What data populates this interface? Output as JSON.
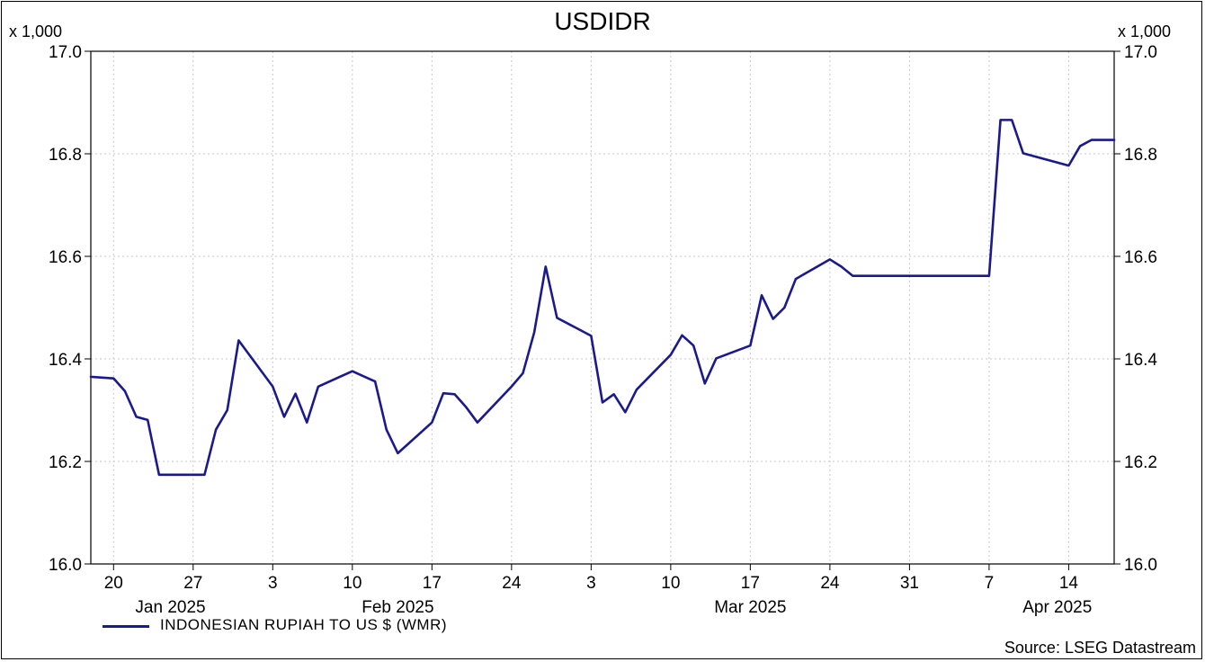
{
  "chart_data": {
    "type": "line",
    "title": "USDIDR",
    "scale_note": "x 1,000",
    "ylim": [
      16.0,
      17.0
    ],
    "y_ticks": [
      "16.0",
      "16.2",
      "16.4",
      "16.6",
      "16.8",
      "17.0"
    ],
    "y_tick_values": [
      16.0,
      16.2,
      16.4,
      16.6,
      16.8,
      17.0
    ],
    "grid": true,
    "x_ticks": [
      {
        "label": "20",
        "date": "2025-01-20"
      },
      {
        "label": "27",
        "date": "2025-01-27"
      },
      {
        "label": "3",
        "date": "2025-02-03"
      },
      {
        "label": "10",
        "date": "2025-02-10"
      },
      {
        "label": "17",
        "date": "2025-02-17"
      },
      {
        "label": "24",
        "date": "2025-02-24"
      },
      {
        "label": "3",
        "date": "2025-03-03"
      },
      {
        "label": "10",
        "date": "2025-03-10"
      },
      {
        "label": "17",
        "date": "2025-03-17"
      },
      {
        "label": "24",
        "date": "2025-03-24"
      },
      {
        "label": "31",
        "date": "2025-03-31"
      },
      {
        "label": "7",
        "date": "2025-04-07"
      },
      {
        "label": "14",
        "date": "2025-04-14"
      }
    ],
    "month_labels": [
      {
        "label": "Jan 2025",
        "date": "2025-01-25"
      },
      {
        "label": "Feb 2025",
        "date": "2025-02-14"
      },
      {
        "label": "Mar 2025",
        "date": "2025-03-17"
      },
      {
        "label": "Apr 2025",
        "date": "2025-04-13"
      }
    ],
    "x_range": [
      "2025-01-18",
      "2025-04-18"
    ],
    "series": [
      {
        "name": "INDONESIAN RUPIAH TO US $ (WMR)",
        "color": "#1a1a8c",
        "points": [
          [
            "2025-01-18",
            16.365
          ],
          [
            "2025-01-20",
            16.362
          ],
          [
            "2025-01-21",
            16.337
          ],
          [
            "2025-01-22",
            16.287
          ],
          [
            "2025-01-23",
            16.281
          ],
          [
            "2025-01-24",
            16.174
          ],
          [
            "2025-01-27",
            16.174
          ],
          [
            "2025-01-28",
            16.174
          ],
          [
            "2025-01-29",
            16.262
          ],
          [
            "2025-01-30",
            16.3
          ],
          [
            "2025-01-31",
            16.436
          ],
          [
            "2025-02-03",
            16.346
          ],
          [
            "2025-02-04",
            16.287
          ],
          [
            "2025-02-05",
            16.332
          ],
          [
            "2025-02-06",
            16.276
          ],
          [
            "2025-02-07",
            16.346
          ],
          [
            "2025-02-10",
            16.376
          ],
          [
            "2025-02-11",
            16.366
          ],
          [
            "2025-02-12",
            16.356
          ],
          [
            "2025-02-13",
            16.262
          ],
          [
            "2025-02-14",
            16.216
          ],
          [
            "2025-02-17",
            16.276
          ],
          [
            "2025-02-18",
            16.333
          ],
          [
            "2025-02-19",
            16.331
          ],
          [
            "2025-02-20",
            16.306
          ],
          [
            "2025-02-21",
            16.276
          ],
          [
            "2025-02-24",
            16.346
          ],
          [
            "2025-02-25",
            16.372
          ],
          [
            "2025-02-26",
            16.452
          ],
          [
            "2025-02-27",
            16.58
          ],
          [
            "2025-02-28",
            16.48
          ],
          [
            "2025-03-03",
            16.445
          ],
          [
            "2025-03-04",
            16.315
          ],
          [
            "2025-03-05",
            16.331
          ],
          [
            "2025-03-06",
            16.296
          ],
          [
            "2025-03-07",
            16.34
          ],
          [
            "2025-03-10",
            16.408
          ],
          [
            "2025-03-11",
            16.446
          ],
          [
            "2025-03-12",
            16.426
          ],
          [
            "2025-03-13",
            16.352
          ],
          [
            "2025-03-14",
            16.401
          ],
          [
            "2025-03-17",
            16.426
          ],
          [
            "2025-03-18",
            16.524
          ],
          [
            "2025-03-19",
            16.478
          ],
          [
            "2025-03-20",
            16.5
          ],
          [
            "2025-03-21",
            16.556
          ],
          [
            "2025-03-24",
            16.594
          ],
          [
            "2025-03-25",
            16.58
          ],
          [
            "2025-03-26",
            16.562
          ],
          [
            "2025-03-27",
            16.562
          ],
          [
            "2025-03-28",
            16.562
          ],
          [
            "2025-03-31",
            16.562
          ],
          [
            "2025-04-01",
            16.562
          ],
          [
            "2025-04-02",
            16.562
          ],
          [
            "2025-04-03",
            16.562
          ],
          [
            "2025-04-04",
            16.562
          ],
          [
            "2025-04-07",
            16.562
          ],
          [
            "2025-04-08",
            16.866
          ],
          [
            "2025-04-09",
            16.866
          ],
          [
            "2025-04-10",
            16.801
          ],
          [
            "2025-04-11",
            16.795
          ],
          [
            "2025-04-14",
            16.777
          ],
          [
            "2025-04-15",
            16.815
          ],
          [
            "2025-04-16",
            16.827
          ],
          [
            "2025-04-17",
            16.827
          ],
          [
            "2025-04-18",
            16.827
          ]
        ]
      }
    ],
    "legend": {
      "placement": "bottom-left",
      "label": "INDONESIAN RUPIAH TO US $ (WMR)"
    },
    "source": "Source: LSEG Datastream"
  }
}
